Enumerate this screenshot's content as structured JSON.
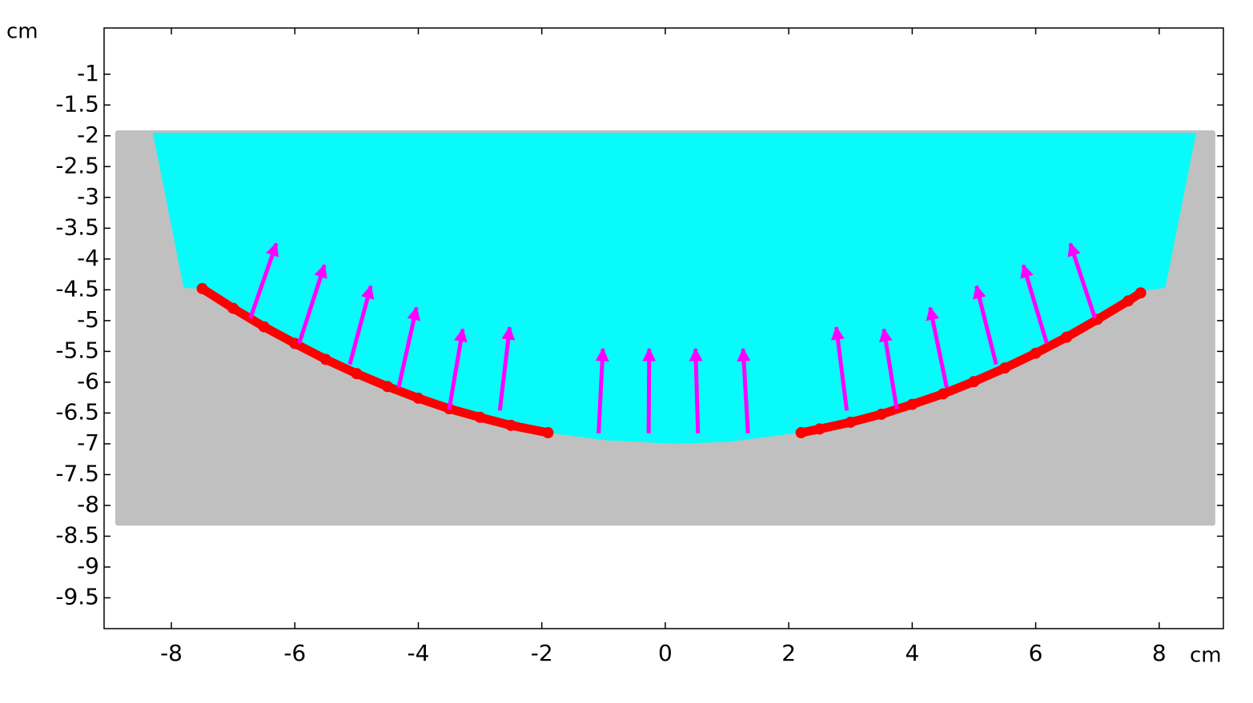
{
  "chart_data": {
    "type": "field",
    "xlabel": "cm",
    "ylabel": "cm",
    "xlim": [
      -9.09,
      9.04
    ],
    "ylim": [
      -10,
      -0.25
    ],
    "xticks": [
      -8,
      -6,
      -4,
      -2,
      0,
      2,
      4,
      6,
      8
    ],
    "yticks": [
      -1,
      -1.5,
      -2,
      -2.5,
      -3,
      -3.5,
      -4,
      -4.5,
      -5,
      -5.5,
      -6,
      -6.5,
      -7,
      -7.5,
      -8,
      -8.5,
      -9,
      -9.5
    ],
    "regions": [
      {
        "color": "#c0c0c0",
        "x": [
          -8.87,
          8.87,
          8.87,
          -8.87
        ],
        "y": [
          -1.95,
          -1.95,
          -8.29,
          -8.29
        ]
      },
      {
        "color": "#08fbfb",
        "x": [
          -8.3,
          8.6,
          8.1,
          7.7,
          7,
          6,
          5,
          4,
          3,
          2.2,
          1,
          0.15,
          -1,
          -1.9,
          -3,
          -4,
          -5,
          -6,
          -7,
          -7.5,
          -7.8
        ],
        "y": [
          -1.95,
          -1.95,
          -4.47,
          -4.52,
          -4.98,
          -5.53,
          -5.99,
          -6.36,
          -6.65,
          -6.82,
          -6.97,
          -7.0,
          -6.94,
          -6.82,
          -6.57,
          -6.26,
          -5.86,
          -5.37,
          -4.8,
          -4.48,
          -4.47
        ]
      }
    ],
    "curves": [
      {
        "color": "#ff0000",
        "x": [
          -7.5,
          -7,
          -6.5,
          -6,
          -5.5,
          -5,
          -4.5,
          -4,
          -3.5,
          -3,
          -2.5,
          -1.9
        ],
        "y": [
          -4.48,
          -4.8,
          -5.1,
          -5.37,
          -5.63,
          -5.86,
          -6.07,
          -6.26,
          -6.43,
          -6.57,
          -6.7,
          -6.82
        ]
      },
      {
        "color": "#ff0000",
        "x": [
          2.2,
          2.5,
          3,
          3.5,
          4,
          4.5,
          5,
          5.5,
          6,
          6.5,
          7,
          7.5,
          7.7
        ],
        "y": [
          -6.82,
          -6.76,
          -6.65,
          -6.52,
          -6.36,
          -6.19,
          -5.99,
          -5.77,
          -5.53,
          -5.27,
          -4.98,
          -4.68,
          -4.55
        ]
      }
    ],
    "arrows": {
      "color": "#ff00ff",
      "x_start": [
        -6.72,
        -5.93,
        -5.11,
        -4.32,
        -3.5,
        -2.68,
        -1.08,
        -0.27,
        0.53,
        1.34,
        2.94,
        3.75,
        4.56,
        5.36,
        6.18,
        6.96
      ],
      "y_start": [
        -4.96,
        -5.37,
        -5.71,
        -6.09,
        -6.44,
        -6.46,
        -6.83,
        -6.83,
        -6.83,
        -6.83,
        -6.46,
        -6.44,
        -6.09,
        -5.71,
        -5.37,
        -4.96
      ],
      "x_end": [
        -6.3,
        -5.52,
        -4.77,
        -4.03,
        -3.28,
        -2.52,
        -1.01,
        -0.26,
        0.49,
        1.26,
        2.77,
        3.54,
        4.29,
        5.04,
        5.8,
        6.56
      ],
      "y_end": [
        -3.75,
        -4.1,
        -4.44,
        -4.79,
        -5.14,
        -5.11,
        -5.46,
        -5.46,
        -5.46,
        -5.46,
        -5.11,
        -5.14,
        -4.79,
        -4.44,
        -4.1,
        -3.75
      ]
    }
  }
}
